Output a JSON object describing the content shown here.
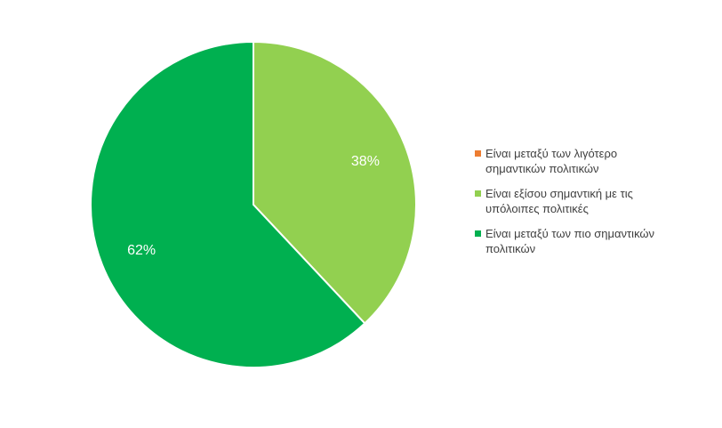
{
  "chart_data": {
    "type": "pie",
    "title": "",
    "slices": [
      {
        "name": "Είναι μεταξύ των λιγότερο σημαντικών πολιτικών",
        "value": 0,
        "label": "",
        "color": "#ED7D31"
      },
      {
        "name": "Είναι εξίσου σημαντική με τις υπόλοιπες πολιτικές",
        "value": 38,
        "label": "38%",
        "color": "#92D050"
      },
      {
        "name": "Είναι μεταξύ των πιο σημαντικών πολιτικών",
        "value": 62,
        "label": "62%",
        "color": "#00B050"
      }
    ],
    "legend_position": "right"
  }
}
